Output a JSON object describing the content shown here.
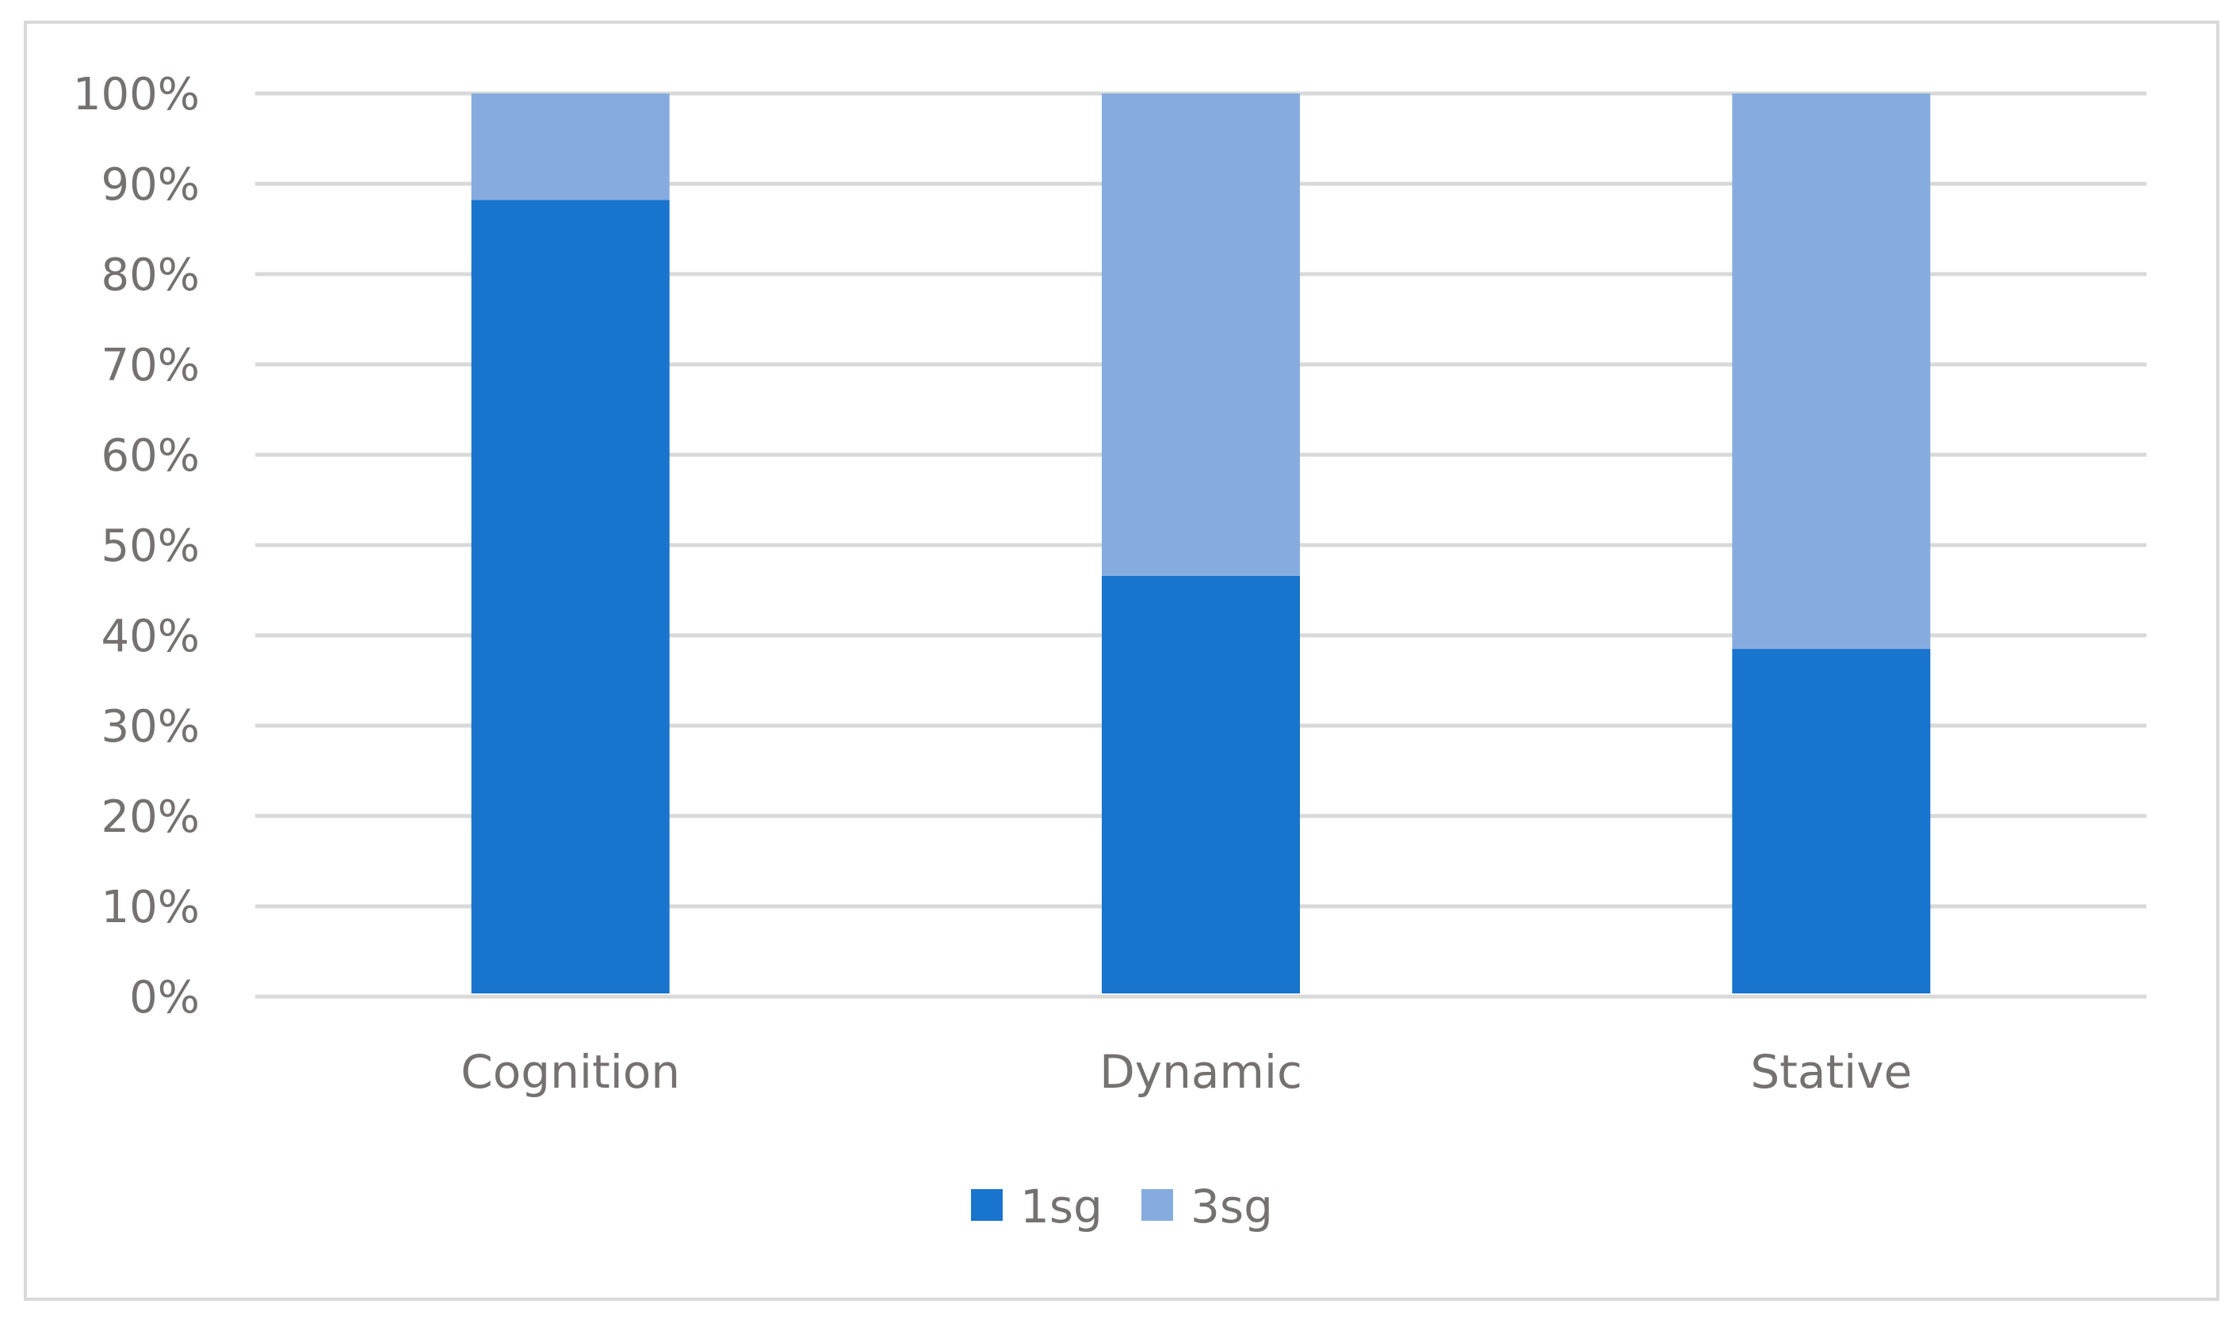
{
  "chart_data": {
    "type": "bar",
    "stacked": true,
    "percent": true,
    "categories": [
      "Cognition",
      "Dynamic",
      "Stative"
    ],
    "series": [
      {
        "name": "1sg",
        "values": [
          88.2,
          46.6,
          38.5
        ],
        "color": "#1874cd"
      },
      {
        "name": "3sg",
        "values": [
          11.8,
          53.4,
          61.5
        ],
        "color": "#86acdf"
      }
    ],
    "yticks": [
      "0%",
      "10%",
      "20%",
      "30%",
      "40%",
      "50%",
      "60%",
      "70%",
      "80%",
      "90%",
      "100%"
    ],
    "ylim": [
      0,
      100
    ],
    "grid": true,
    "gridColor": "#d9d9d9",
    "legend": "bottom"
  }
}
